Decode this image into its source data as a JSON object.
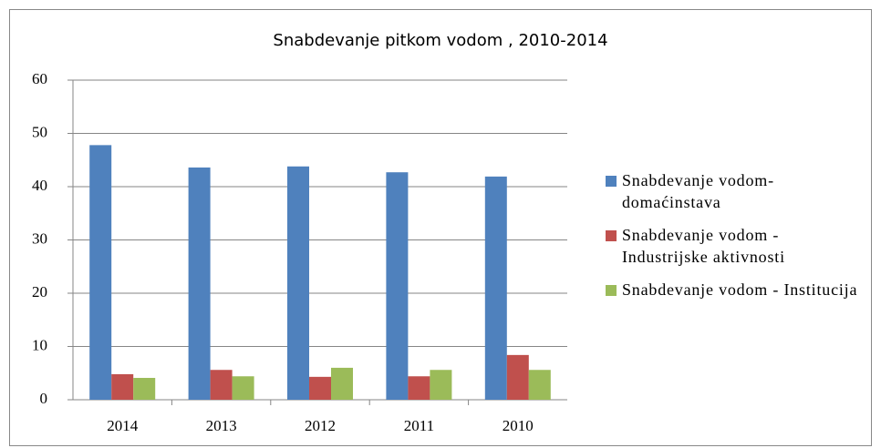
{
  "chart_data": {
    "type": "bar",
    "title": "Snabdevanje pitkom vodom , 2010-2014",
    "categories": [
      "2014",
      "2013",
      "2012",
      "2011",
      "2010"
    ],
    "series": [
      {
        "name": "Snabdevanje vodom-domaćinstava",
        "color": "#4f81bd",
        "values": [
          47.8,
          43.6,
          43.8,
          42.7,
          41.9
        ]
      },
      {
        "name": "Snabdevanje vodom - Industrijske aktivnosti",
        "color": "#c0504d",
        "values": [
          4.8,
          5.6,
          4.3,
          4.4,
          8.4
        ]
      },
      {
        "name": "Snabdevanje vodom - Institucija",
        "color": "#9bbb59",
        "values": [
          4.1,
          4.4,
          6.0,
          5.6,
          5.6
        ]
      }
    ],
    "ylim": [
      0,
      60
    ],
    "yticks": [
      0,
      10,
      20,
      30,
      40,
      50,
      60
    ],
    "grid": true,
    "legend": "right"
  }
}
